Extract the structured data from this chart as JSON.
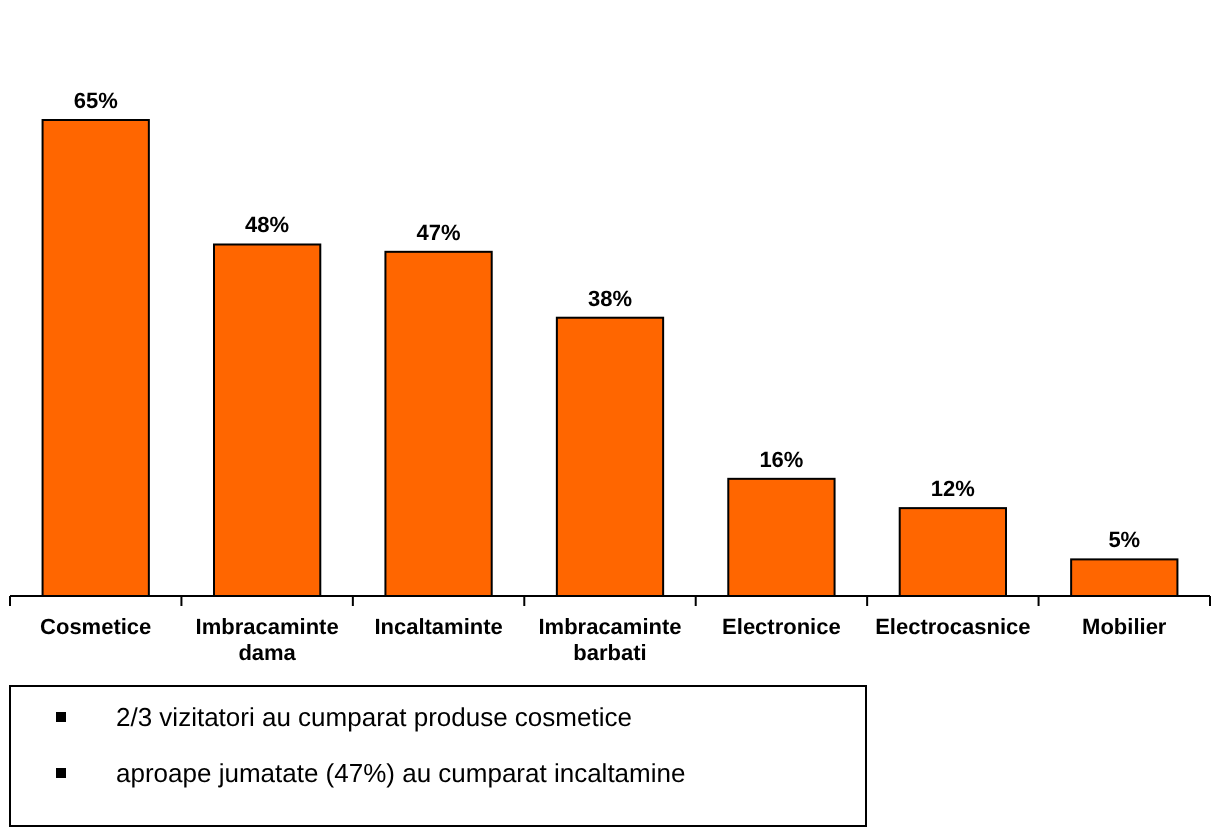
{
  "chart_data": {
    "type": "bar",
    "categories": [
      "Cosmetice",
      "Imbracaminte dama",
      "Incaltaminte",
      "Imbracaminte barbati",
      "Electronice",
      "Electrocasnice",
      "Mobilier"
    ],
    "values": [
      65,
      48,
      47,
      38,
      16,
      12,
      5
    ],
    "value_labels": [
      "65%",
      "48%",
      "47%",
      "38%",
      "16%",
      "12%",
      "5%"
    ],
    "color": "#ff6600",
    "annotations": [
      "2/3 vizitatori au cumparat produse cosmetice",
      "aproape jumatate (47%) au cumparat incaltamine"
    ]
  }
}
